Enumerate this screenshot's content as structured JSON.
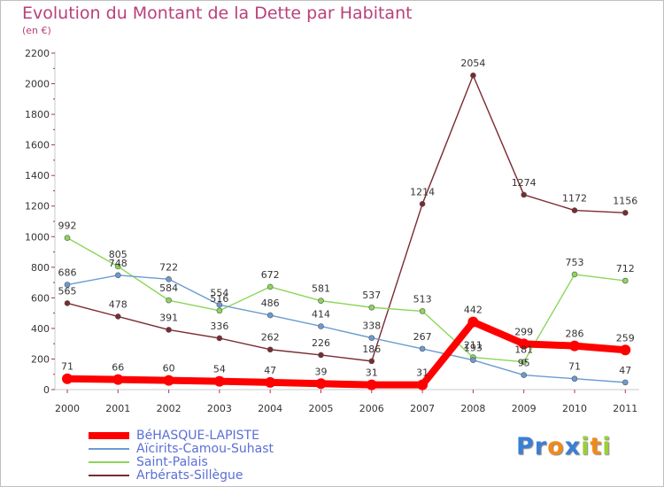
{
  "chart_data": {
    "type": "line",
    "title": "Evolution du Montant de la Dette par Habitant",
    "subtitle": "(en €)",
    "ylim": [
      0,
      2200
    ],
    "yticks": [
      0,
      200,
      400,
      600,
      800,
      1000,
      1200,
      1400,
      1600,
      1800,
      2000,
      2200
    ],
    "x": [
      2000,
      2001,
      2002,
      2003,
      2004,
      2005,
      2006,
      2007,
      2008,
      2009,
      2010,
      2011
    ],
    "grid": false,
    "legend": "bottom-left",
    "series": [
      {
        "name": "BéHASQUE-LAPISTE",
        "color": "#ff0000",
        "values": [
          71,
          66,
          60,
          54,
          47,
          39,
          31,
          31,
          442,
          299,
          286,
          259
        ]
      },
      {
        "name": "Aïcirits-Camou-Suhast",
        "color": "#6a9bd1",
        "values": [
          686,
          748,
          722,
          554,
          486,
          414,
          338,
          267,
          193,
          95,
          71,
          47
        ]
      },
      {
        "name": "Saint-Palais",
        "color": "#8bd65a",
        "values": [
          992,
          805,
          584,
          516,
          672,
          581,
          537,
          513,
          211,
          181,
          753,
          712
        ]
      },
      {
        "name": "Arbérats-Sillègue",
        "color": "#7a2a32",
        "values": [
          565,
          478,
          391,
          336,
          262,
          226,
          186,
          1214,
          2054,
          1274,
          1172,
          1156
        ]
      }
    ]
  },
  "logo": {
    "letters": [
      "P",
      "r",
      "o",
      "x",
      "i",
      "t",
      "i"
    ],
    "colors": [
      "#3a7fd5",
      "#3a7fd5",
      "#f08a1c",
      "#3a7fd5",
      "#9bcf3a",
      "#f08a1c",
      "#9bcf3a"
    ]
  }
}
